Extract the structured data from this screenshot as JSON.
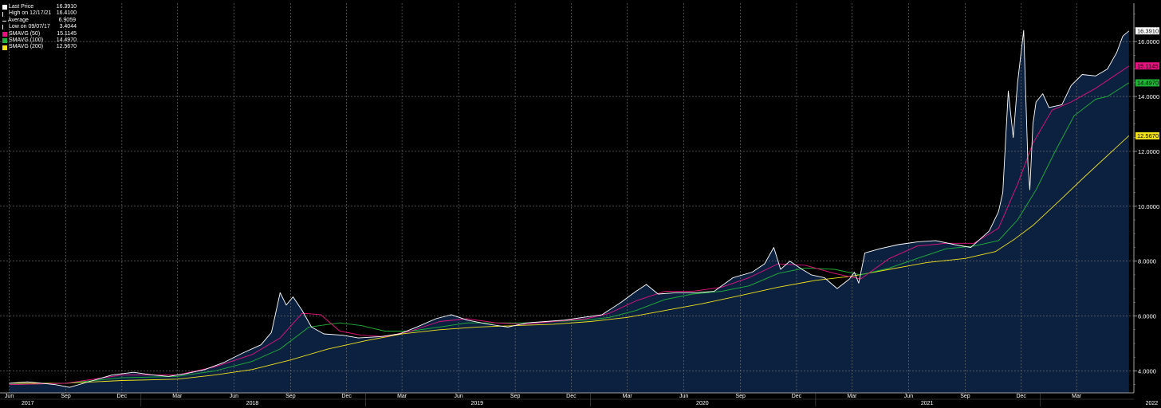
{
  "chart_data": {
    "type": "line",
    "legend": [
      {
        "label": "Last Price",
        "value": "16.3910",
        "color": "#ffffff",
        "marker": "square"
      },
      {
        "label": "High on 12/17/21",
        "value": "16.4100",
        "color": "#ffffff",
        "marker": "tick-up"
      },
      {
        "label": "Average",
        "value": "6.9059",
        "color": "#ffffff",
        "marker": "dash"
      },
      {
        "label": "Low on 09/07/17",
        "value": "3.4044",
        "color": "#ffffff",
        "marker": "tick-down"
      },
      {
        "label": "SMAVG (50)",
        "value": "15.1145",
        "color": "#e6127f",
        "marker": "square"
      },
      {
        "label": "SMAVG (100)",
        "value": "14.4970",
        "color": "#1fb338",
        "marker": "square"
      },
      {
        "label": "SMAVG (200)",
        "value": "12.5670",
        "color": "#f2e21b",
        "marker": "square"
      }
    ],
    "yaxis": {
      "ticks": [
        "4.0000",
        "6.0000",
        "8.0000",
        "10.0000",
        "12.0000",
        "14.0000",
        "16.0000"
      ],
      "ylim": [
        3.2,
        17.4
      ]
    },
    "xaxis": {
      "months": [
        "Jun",
        "Sep",
        "Dec",
        "Mar",
        "Jun",
        "Sep",
        "Dec",
        "Mar",
        "Jun",
        "Sep",
        "Dec",
        "Mar",
        "Jun",
        "Sep",
        "Dec",
        "Mar",
        "Jun",
        "Sep",
        "Dec",
        "Mar"
      ],
      "years": [
        "2017",
        "2018",
        "2019",
        "2020",
        "2021",
        "2022"
      ],
      "start": "2017-06",
      "end": "2022-05"
    },
    "last_value_tags": [
      {
        "label": "16.3910",
        "value": 16.391,
        "color": "#ffffff"
      },
      {
        "label": "15.1145",
        "value": 15.1145,
        "color": "#e6127f"
      },
      {
        "label": "14.4970",
        "value": 14.497,
        "color": "#1fb338"
      },
      {
        "label": "12.5670",
        "value": 12.567,
        "color": "#f2e21b"
      }
    ],
    "series": [
      {
        "name": "Last Price",
        "color": "#ffffff",
        "fill": "#0c2140",
        "points": [
          [
            "2017-06-01",
            3.55
          ],
          [
            "2017-07-01",
            3.6
          ],
          [
            "2017-08-15",
            3.5
          ],
          [
            "2017-09-07",
            3.4
          ],
          [
            "2017-10-15",
            3.65
          ],
          [
            "2017-11-15",
            3.85
          ],
          [
            "2017-12-20",
            3.95
          ],
          [
            "2018-01-20",
            3.85
          ],
          [
            "2018-02-15",
            3.8
          ],
          [
            "2018-03-15",
            3.9
          ],
          [
            "2018-04-15",
            4.05
          ],
          [
            "2018-05-15",
            4.3
          ],
          [
            "2018-06-15",
            4.65
          ],
          [
            "2018-07-15",
            4.95
          ],
          [
            "2018-08-01",
            5.4
          ],
          [
            "2018-08-15",
            6.85
          ],
          [
            "2018-08-25",
            6.4
          ],
          [
            "2018-09-05",
            6.7
          ],
          [
            "2018-09-20",
            6.2
          ],
          [
            "2018-10-05",
            5.6
          ],
          [
            "2018-10-25",
            5.35
          ],
          [
            "2018-11-25",
            5.3
          ],
          [
            "2018-12-20",
            5.2
          ],
          [
            "2019-01-25",
            5.25
          ],
          [
            "2019-02-25",
            5.35
          ],
          [
            "2019-03-25",
            5.6
          ],
          [
            "2019-04-25",
            5.9
          ],
          [
            "2019-05-20",
            6.05
          ],
          [
            "2019-06-15",
            5.85
          ],
          [
            "2019-07-20",
            5.7
          ],
          [
            "2019-08-20",
            5.6
          ],
          [
            "2019-09-20",
            5.75
          ],
          [
            "2019-10-20",
            5.8
          ],
          [
            "2019-11-20",
            5.85
          ],
          [
            "2019-12-20",
            5.95
          ],
          [
            "2020-01-20",
            6.05
          ],
          [
            "2020-02-20",
            6.5
          ],
          [
            "2020-03-15",
            6.9
          ],
          [
            "2020-04-01",
            7.15
          ],
          [
            "2020-04-20",
            6.8
          ],
          [
            "2020-05-20",
            6.85
          ],
          [
            "2020-06-20",
            6.85
          ],
          [
            "2020-07-20",
            6.9
          ],
          [
            "2020-08-20",
            7.4
          ],
          [
            "2020-09-20",
            7.6
          ],
          [
            "2020-10-10",
            7.9
          ],
          [
            "2020-10-25",
            8.5
          ],
          [
            "2020-11-05",
            7.7
          ],
          [
            "2020-11-20",
            8.0
          ],
          [
            "2020-12-10",
            7.7
          ],
          [
            "2020-12-25",
            7.5
          ],
          [
            "2021-01-15",
            7.4
          ],
          [
            "2021-02-05",
            7.0
          ],
          [
            "2021-02-25",
            7.35
          ],
          [
            "2021-03-05",
            7.6
          ],
          [
            "2021-03-12",
            7.2
          ],
          [
            "2021-03-22",
            8.3
          ],
          [
            "2021-04-15",
            8.45
          ],
          [
            "2021-05-15",
            8.6
          ],
          [
            "2021-06-15",
            8.7
          ],
          [
            "2021-07-15",
            8.75
          ],
          [
            "2021-08-15",
            8.6
          ],
          [
            "2021-09-10",
            8.5
          ],
          [
            "2021-09-25",
            8.8
          ],
          [
            "2021-10-10",
            9.1
          ],
          [
            "2021-10-25",
            9.8
          ],
          [
            "2021-11-01",
            10.5
          ],
          [
            "2021-11-05",
            12.2
          ],
          [
            "2021-11-10",
            14.2
          ],
          [
            "2021-11-18",
            12.5
          ],
          [
            "2021-11-25",
            14.5
          ],
          [
            "2021-12-05",
            16.41
          ],
          [
            "2021-12-12",
            11.5
          ],
          [
            "2021-12-15",
            10.6
          ],
          [
            "2021-12-20",
            13.0
          ],
          [
            "2021-12-25",
            13.8
          ],
          [
            "2022-01-05",
            14.1
          ],
          [
            "2022-01-15",
            13.6
          ],
          [
            "2022-02-05",
            13.7
          ],
          [
            "2022-02-20",
            14.4
          ],
          [
            "2022-03-10",
            14.8
          ],
          [
            "2022-04-01",
            14.75
          ],
          [
            "2022-04-20",
            15.0
          ],
          [
            "2022-05-05",
            15.6
          ],
          [
            "2022-05-15",
            16.2
          ],
          [
            "2022-05-25",
            16.39
          ]
        ]
      },
      {
        "name": "SMAVG (50)",
        "color": "#e6127f",
        "points": [
          [
            "2017-06-01",
            3.5
          ],
          [
            "2017-09-01",
            3.55
          ],
          [
            "2017-12-01",
            3.85
          ],
          [
            "2018-03-01",
            3.85
          ],
          [
            "2018-05-01",
            4.15
          ],
          [
            "2018-07-01",
            4.6
          ],
          [
            "2018-08-15",
            5.2
          ],
          [
            "2018-09-20",
            6.1
          ],
          [
            "2018-10-20",
            6.05
          ],
          [
            "2018-11-20",
            5.45
          ],
          [
            "2018-12-25",
            5.3
          ],
          [
            "2019-02-01",
            5.25
          ],
          [
            "2019-03-15",
            5.45
          ],
          [
            "2019-05-01",
            5.8
          ],
          [
            "2019-06-15",
            5.9
          ],
          [
            "2019-08-01",
            5.75
          ],
          [
            "2019-09-15",
            5.7
          ],
          [
            "2019-11-01",
            5.8
          ],
          [
            "2019-12-25",
            5.9
          ],
          [
            "2020-02-01",
            6.1
          ],
          [
            "2020-03-15",
            6.55
          ],
          [
            "2020-05-01",
            6.9
          ],
          [
            "2020-06-15",
            6.9
          ],
          [
            "2020-08-01",
            7.05
          ],
          [
            "2020-09-15",
            7.4
          ],
          [
            "2020-11-01",
            7.9
          ],
          [
            "2020-12-15",
            7.85
          ],
          [
            "2021-02-01",
            7.55
          ],
          [
            "2021-03-15",
            7.35
          ],
          [
            "2021-05-01",
            8.1
          ],
          [
            "2021-06-15",
            8.55
          ],
          [
            "2021-08-01",
            8.65
          ],
          [
            "2021-09-15",
            8.65
          ],
          [
            "2021-10-25",
            9.2
          ],
          [
            "2021-11-25",
            10.8
          ],
          [
            "2021-12-20",
            12.3
          ],
          [
            "2022-01-20",
            13.5
          ],
          [
            "2022-02-20",
            13.8
          ],
          [
            "2022-04-01",
            14.3
          ],
          [
            "2022-05-25",
            15.11
          ]
        ]
      },
      {
        "name": "SMAVG (100)",
        "color": "#1fb338",
        "points": [
          [
            "2017-06-01",
            3.5
          ],
          [
            "2017-09-01",
            3.55
          ],
          [
            "2017-12-01",
            3.75
          ],
          [
            "2018-03-01",
            3.8
          ],
          [
            "2018-05-01",
            4.0
          ],
          [
            "2018-07-01",
            4.35
          ],
          [
            "2018-08-15",
            4.8
          ],
          [
            "2018-10-01",
            5.6
          ],
          [
            "2018-11-20",
            5.75
          ],
          [
            "2018-12-25",
            5.65
          ],
          [
            "2019-02-01",
            5.45
          ],
          [
            "2019-03-15",
            5.45
          ],
          [
            "2019-05-01",
            5.6
          ],
          [
            "2019-06-15",
            5.75
          ],
          [
            "2019-08-01",
            5.75
          ],
          [
            "2019-09-15",
            5.75
          ],
          [
            "2019-11-01",
            5.8
          ],
          [
            "2019-12-25",
            5.85
          ],
          [
            "2020-02-01",
            5.95
          ],
          [
            "2020-03-15",
            6.2
          ],
          [
            "2020-05-01",
            6.6
          ],
          [
            "2020-06-15",
            6.8
          ],
          [
            "2020-08-01",
            6.9
          ],
          [
            "2020-09-15",
            7.1
          ],
          [
            "2020-11-01",
            7.55
          ],
          [
            "2020-12-15",
            7.75
          ],
          [
            "2021-02-01",
            7.7
          ],
          [
            "2021-03-15",
            7.5
          ],
          [
            "2021-05-01",
            7.75
          ],
          [
            "2021-06-15",
            8.1
          ],
          [
            "2021-08-01",
            8.45
          ],
          [
            "2021-09-15",
            8.55
          ],
          [
            "2021-10-25",
            8.75
          ],
          [
            "2021-11-25",
            9.5
          ],
          [
            "2021-12-25",
            10.6
          ],
          [
            "2022-01-25",
            12.0
          ],
          [
            "2022-02-25",
            13.3
          ],
          [
            "2022-04-01",
            13.9
          ],
          [
            "2022-04-20",
            14.0
          ],
          [
            "2022-05-25",
            14.5
          ]
        ]
      },
      {
        "name": "SMAVG (200)",
        "color": "#f2e21b",
        "points": [
          [
            "2017-06-01",
            3.55
          ],
          [
            "2017-09-01",
            3.55
          ],
          [
            "2017-12-01",
            3.65
          ],
          [
            "2018-03-01",
            3.7
          ],
          [
            "2018-05-01",
            3.85
          ],
          [
            "2018-07-01",
            4.05
          ],
          [
            "2018-09-01",
            4.4
          ],
          [
            "2018-11-01",
            4.8
          ],
          [
            "2019-01-01",
            5.1
          ],
          [
            "2019-03-01",
            5.35
          ],
          [
            "2019-05-01",
            5.5
          ],
          [
            "2019-07-01",
            5.6
          ],
          [
            "2019-09-01",
            5.65
          ],
          [
            "2019-11-01",
            5.7
          ],
          [
            "2020-01-01",
            5.8
          ],
          [
            "2020-03-01",
            5.95
          ],
          [
            "2020-05-01",
            6.2
          ],
          [
            "2020-07-01",
            6.45
          ],
          [
            "2020-09-01",
            6.75
          ],
          [
            "2020-11-01",
            7.05
          ],
          [
            "2021-01-01",
            7.3
          ],
          [
            "2021-03-01",
            7.45
          ],
          [
            "2021-05-01",
            7.7
          ],
          [
            "2021-07-01",
            7.95
          ],
          [
            "2021-09-01",
            8.1
          ],
          [
            "2021-10-20",
            8.35
          ],
          [
            "2021-11-20",
            8.8
          ],
          [
            "2021-12-20",
            9.3
          ],
          [
            "2022-02-01",
            10.2
          ],
          [
            "2022-03-15",
            11.1
          ],
          [
            "2022-05-25",
            12.57
          ]
        ]
      }
    ]
  }
}
